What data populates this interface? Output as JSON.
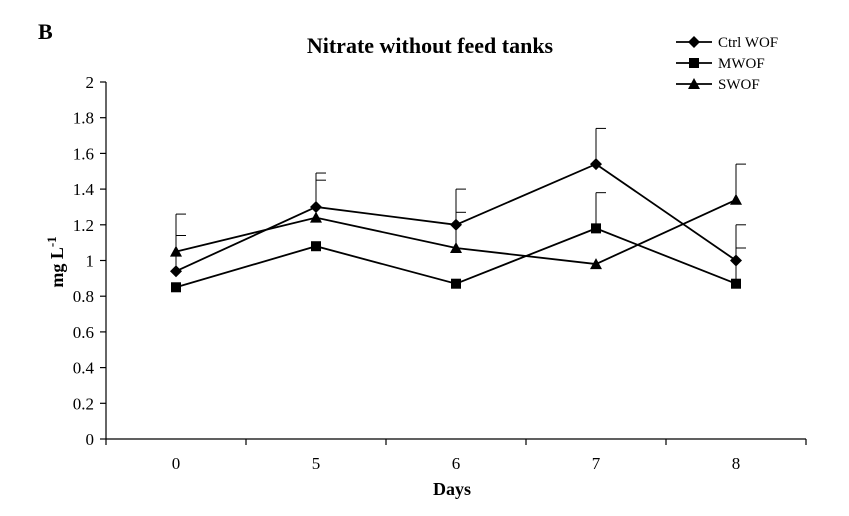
{
  "panel_label": "B",
  "chart_data": {
    "type": "line",
    "title": "Nitrate without feed tanks",
    "xlabel": "Days",
    "ylabel": "mg L",
    "ylabel_superscript": "-1",
    "categories": [
      "0",
      "5",
      "6",
      "7",
      "8"
    ],
    "ylim": [
      0,
      2
    ],
    "yticks": [
      0,
      0.2,
      0.4,
      0.6,
      0.8,
      1,
      1.2,
      1.4,
      1.6,
      1.8,
      2
    ],
    "ytick_labels": [
      "0",
      "0.2",
      "0.4",
      "0.6",
      "0.8",
      "1",
      "1.2",
      "1.4",
      "1.6",
      "1.8",
      "2"
    ],
    "grid": false,
    "legend_position": "top-right",
    "series": [
      {
        "name": "Ctrl WOF",
        "marker": "diamond",
        "values": [
          0.94,
          1.3,
          1.2,
          1.54,
          1.0
        ],
        "error_upper": [
          1.14,
          1.49,
          1.4,
          1.74,
          1.2
        ]
      },
      {
        "name": "MWOF",
        "marker": "square",
        "values": [
          0.85,
          1.08,
          0.87,
          1.18,
          0.87
        ],
        "error_upper": [
          0.85,
          1.08,
          0.87,
          1.38,
          1.07
        ]
      },
      {
        "name": "SWOF",
        "marker": "triangle",
        "values": [
          1.05,
          1.24,
          1.07,
          0.98,
          1.34
        ],
        "error_upper": [
          1.26,
          1.45,
          1.27,
          0.98,
          1.54
        ]
      }
    ]
  }
}
